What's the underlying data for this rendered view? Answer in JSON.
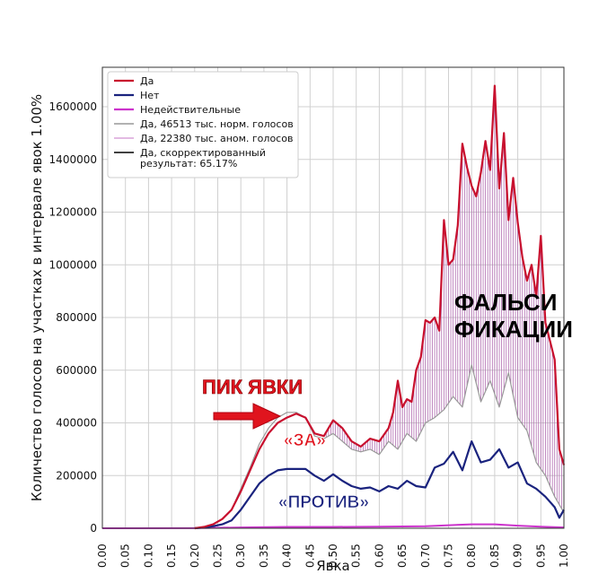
{
  "chart_data": {
    "type": "line",
    "xlabel": "Явка",
    "ylabel": "Количество голосов на участках в интервале явок 1.00%",
    "xlim": [
      0.0,
      1.0
    ],
    "ylim": [
      0,
      1750000
    ],
    "grid": true,
    "legend_position": "top-left",
    "x_ticks": [
      "0.00",
      "0.05",
      "0.10",
      "0.15",
      "0.20",
      "0.25",
      "0.30",
      "0.35",
      "0.40",
      "0.45",
      "0.50",
      "0.55",
      "0.60",
      "0.65",
      "0.70",
      "0.75",
      "0.80",
      "0.85",
      "0.90",
      "0.95",
      "1.00"
    ],
    "y_ticks": [
      "0",
      "200000",
      "400000",
      "600000",
      "800000",
      "1000000",
      "1200000",
      "1400000",
      "1600000"
    ],
    "legend": [
      {
        "label": "Да",
        "color": "#c8102e",
        "kind": "line"
      },
      {
        "label": "Нет",
        "color": "#1a237e",
        "kind": "line"
      },
      {
        "label": "Недействительные",
        "color": "#cc33cc",
        "kind": "line"
      },
      {
        "label": "Да, 46513 тыс. норм. голосов",
        "color": "#999999",
        "kind": "line"
      },
      {
        "label": "Да, 22380 тыс. аном. голосов",
        "color": "#d9a3d9",
        "kind": "line"
      },
      {
        "label": "Да, скорректированный",
        "label2": "результат: 65.17%",
        "color": "#000000",
        "kind": "line"
      }
    ],
    "series": [
      {
        "name": "Да",
        "color": "#c8102e",
        "x": [
          0.2,
          0.22,
          0.24,
          0.26,
          0.28,
          0.3,
          0.32,
          0.34,
          0.36,
          0.38,
          0.4,
          0.42,
          0.44,
          0.46,
          0.48,
          0.5,
          0.52,
          0.54,
          0.56,
          0.58,
          0.6,
          0.62,
          0.63,
          0.64,
          0.65,
          0.66,
          0.67,
          0.68,
          0.69,
          0.7,
          0.71,
          0.72,
          0.73,
          0.74,
          0.75,
          0.76,
          0.77,
          0.78,
          0.79,
          0.8,
          0.81,
          0.82,
          0.83,
          0.84,
          0.85,
          0.86,
          0.87,
          0.88,
          0.89,
          0.9,
          0.91,
          0.92,
          0.93,
          0.94,
          0.95,
          0.96,
          0.97,
          0.98,
          0.99,
          1.0
        ],
        "y": [
          0,
          5000,
          15000,
          35000,
          70000,
          140000,
          220000,
          300000,
          360000,
          400000,
          420000,
          435000,
          420000,
          360000,
          350000,
          410000,
          380000,
          330000,
          310000,
          340000,
          330000,
          380000,
          440000,
          560000,
          460000,
          490000,
          480000,
          600000,
          650000,
          790000,
          780000,
          800000,
          750000,
          1170000,
          1000000,
          1020000,
          1150000,
          1460000,
          1370000,
          1300000,
          1260000,
          1350000,
          1470000,
          1360000,
          1680000,
          1290000,
          1500000,
          1170000,
          1330000,
          1160000,
          1030000,
          940000,
          1000000,
          880000,
          1110000,
          780000,
          710000,
          640000,
          300000,
          240000
        ]
      },
      {
        "name": "Нет",
        "color": "#1a237e",
        "x": [
          0.2,
          0.22,
          0.24,
          0.26,
          0.28,
          0.3,
          0.32,
          0.34,
          0.36,
          0.38,
          0.4,
          0.42,
          0.44,
          0.46,
          0.48,
          0.5,
          0.52,
          0.54,
          0.56,
          0.58,
          0.6,
          0.62,
          0.64,
          0.66,
          0.68,
          0.7,
          0.72,
          0.74,
          0.76,
          0.78,
          0.8,
          0.82,
          0.84,
          0.86,
          0.88,
          0.9,
          0.92,
          0.94,
          0.96,
          0.98,
          0.99,
          1.0
        ],
        "y": [
          0,
          3000,
          8000,
          15000,
          30000,
          70000,
          120000,
          170000,
          200000,
          220000,
          225000,
          225000,
          225000,
          200000,
          180000,
          205000,
          180000,
          160000,
          150000,
          155000,
          140000,
          160000,
          150000,
          180000,
          160000,
          155000,
          230000,
          245000,
          290000,
          220000,
          330000,
          250000,
          260000,
          300000,
          230000,
          250000,
          170000,
          150000,
          120000,
          80000,
          40000,
          70000
        ]
      },
      {
        "name": "Недействительные",
        "color": "#cc33cc",
        "x": [
          0.0,
          0.2,
          0.3,
          0.4,
          0.5,
          0.6,
          0.7,
          0.8,
          0.85,
          0.9,
          0.95,
          1.0
        ],
        "y": [
          0,
          500,
          3000,
          5000,
          5000,
          6000,
          8000,
          15000,
          15000,
          10000,
          6000,
          3000
        ]
      },
      {
        "name": "Да, 46513 тыс. норм. голосов",
        "color": "#999999",
        "x": [
          0.2,
          0.22,
          0.24,
          0.26,
          0.28,
          0.3,
          0.32,
          0.34,
          0.36,
          0.38,
          0.4,
          0.42,
          0.44,
          0.46,
          0.48,
          0.5,
          0.52,
          0.54,
          0.56,
          0.58,
          0.6,
          0.62,
          0.64,
          0.66,
          0.68,
          0.7,
          0.72,
          0.74,
          0.76,
          0.78,
          0.8,
          0.82,
          0.84,
          0.86,
          0.88,
          0.9,
          0.92,
          0.94,
          0.96,
          0.98,
          1.0
        ],
        "y": [
          0,
          5000,
          15000,
          35000,
          70000,
          150000,
          230000,
          320000,
          380000,
          420000,
          440000,
          440000,
          420000,
          350000,
          340000,
          360000,
          330000,
          300000,
          290000,
          300000,
          280000,
          330000,
          300000,
          360000,
          330000,
          400000,
          420000,
          450000,
          500000,
          460000,
          620000,
          480000,
          560000,
          460000,
          590000,
          420000,
          370000,
          250000,
          200000,
          120000,
          60000
        ]
      },
      {
        "name": "Да, 22380 тыс. аном. голосов",
        "color": "#d9a3d9",
        "x": [
          0.5,
          0.6,
          0.7,
          0.8,
          0.9,
          1.0
        ],
        "y": [
          0,
          0,
          0,
          0,
          0,
          0
        ]
      },
      {
        "name": "Да, скорректированный",
        "color": "#000000",
        "x": [
          0.0,
          1.0
        ],
        "y": [
          0,
          0
        ]
      }
    ]
  },
  "annotations": {
    "peak_turnout": "ПИК ЯВКИ",
    "for_label": "«ЗА»",
    "against_label": "«ПРОТИВ»",
    "falsifications_line1": "ФАЛЬСИ",
    "falsifications_line2": "ФИКАЦИИ"
  }
}
